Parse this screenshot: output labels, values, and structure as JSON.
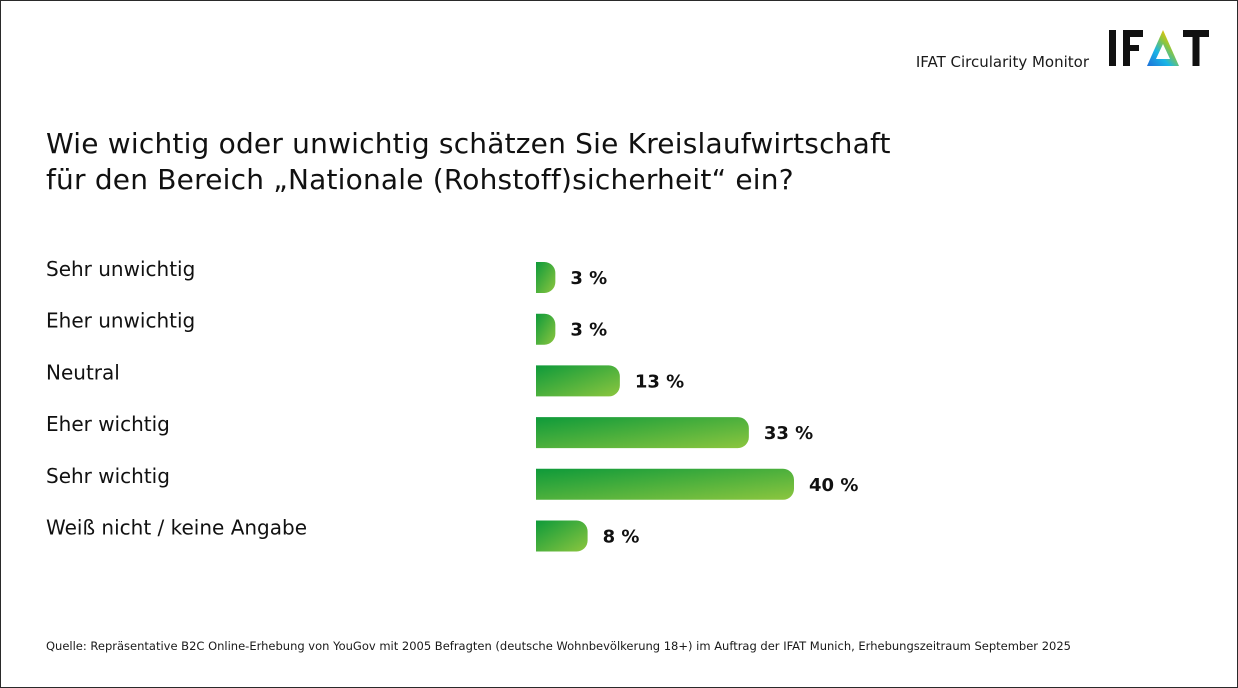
{
  "header": {
    "subtitle": "IFAT Circularity Monitor",
    "logo_text": "IFAT"
  },
  "title_lines": [
    "Wie wichtig oder unwichtig schätzen Sie Kreislaufwirtschaft",
    "für den Bereich „Nationale (Rohstoff)sicherheit“ ein?"
  ],
  "chart_data": {
    "type": "bar",
    "orientation": "horizontal",
    "categories": [
      "Sehr unwichtig",
      "Eher unwichtig",
      "Neutral",
      "Eher wichtig",
      "Sehr wichtig",
      "Weiß nicht / keine Angabe"
    ],
    "values": [
      3,
      3,
      13,
      33,
      40,
      8
    ],
    "value_labels": [
      "3 %",
      "3 %",
      "13 %",
      "33 %",
      "40 %",
      "8 %"
    ],
    "unit": "%",
    "xlim": [
      0,
      100
    ],
    "grid": false,
    "legend": "none",
    "colors": {
      "bar_start": "#0e9a3a",
      "bar_end": "#8cc63f"
    }
  },
  "footer": {
    "source": "Quelle: Repräsentative B2C Online-Erhebung von YouGov mit 2005 Befragten (deutsche Wohnbevölkerung 18+) im Auftrag der IFAT Munich, Erhebungszeitraum September 2025"
  }
}
